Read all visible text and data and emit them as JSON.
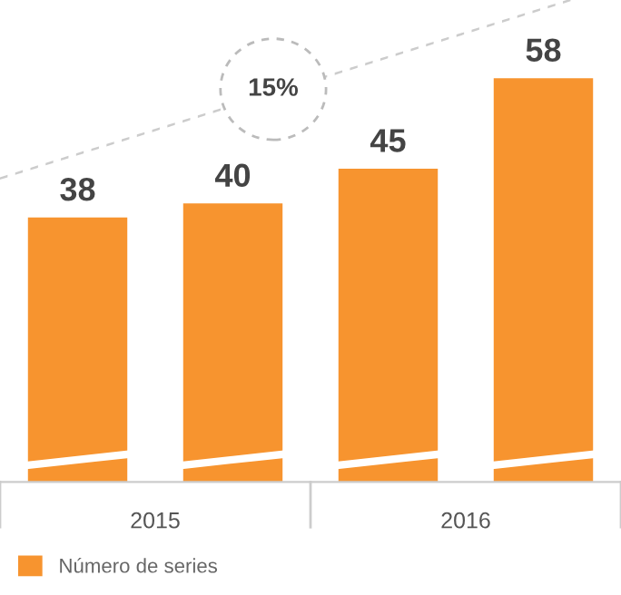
{
  "chart_data": {
    "type": "bar",
    "categories": [
      null,
      null,
      null,
      null
    ],
    "series": [
      {
        "name": "Número de series",
        "color": "#f7942f",
        "values": [
          38,
          40,
          45,
          58
        ]
      }
    ],
    "data_labels": true,
    "annotations": [
      "15%",
      "2015",
      "2016"
    ],
    "legend": "bottom left",
    "grid": false
  }
}
